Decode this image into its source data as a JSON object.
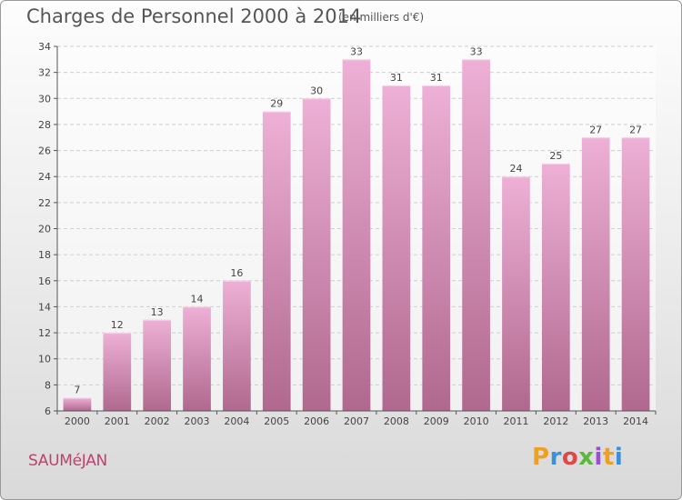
{
  "header": {
    "title": "Charges de Personnel 2000 à 2014",
    "subtitle": "(en milliers d'€)"
  },
  "footer": {
    "commune": "SAUMéJAN",
    "logo_letters": [
      "P",
      "r",
      "o",
      "x",
      "i",
      "t",
      "i"
    ],
    "logo_colors": [
      "#f0a020",
      "#3c8fd8",
      "#e04848",
      "#5bb83a",
      "#9a4fd0",
      "#f0a020",
      "#3c8fd8"
    ]
  },
  "colors": {
    "bar_top": "#eeb0d6",
    "bar_bottom": "#b0688e",
    "commune_text": "#c0406e"
  },
  "chart_data": {
    "type": "bar",
    "categories": [
      "2000",
      "2001",
      "2002",
      "2003",
      "2004",
      "2005",
      "2006",
      "2007",
      "2008",
      "2009",
      "2010",
      "2011",
      "2012",
      "2013",
      "2014"
    ],
    "values": [
      7,
      12,
      13,
      14,
      16,
      29,
      30,
      33,
      31,
      31,
      33,
      24,
      25,
      27,
      27
    ],
    "title": "Charges de Personnel 2000 à 2014",
    "xlabel": "",
    "ylabel": "",
    "ylim": [
      6,
      34
    ],
    "yticks": [
      6,
      8,
      10,
      12,
      14,
      16,
      18,
      20,
      22,
      24,
      26,
      28,
      30,
      32,
      34
    ],
    "grid": true,
    "data_labels": true
  }
}
